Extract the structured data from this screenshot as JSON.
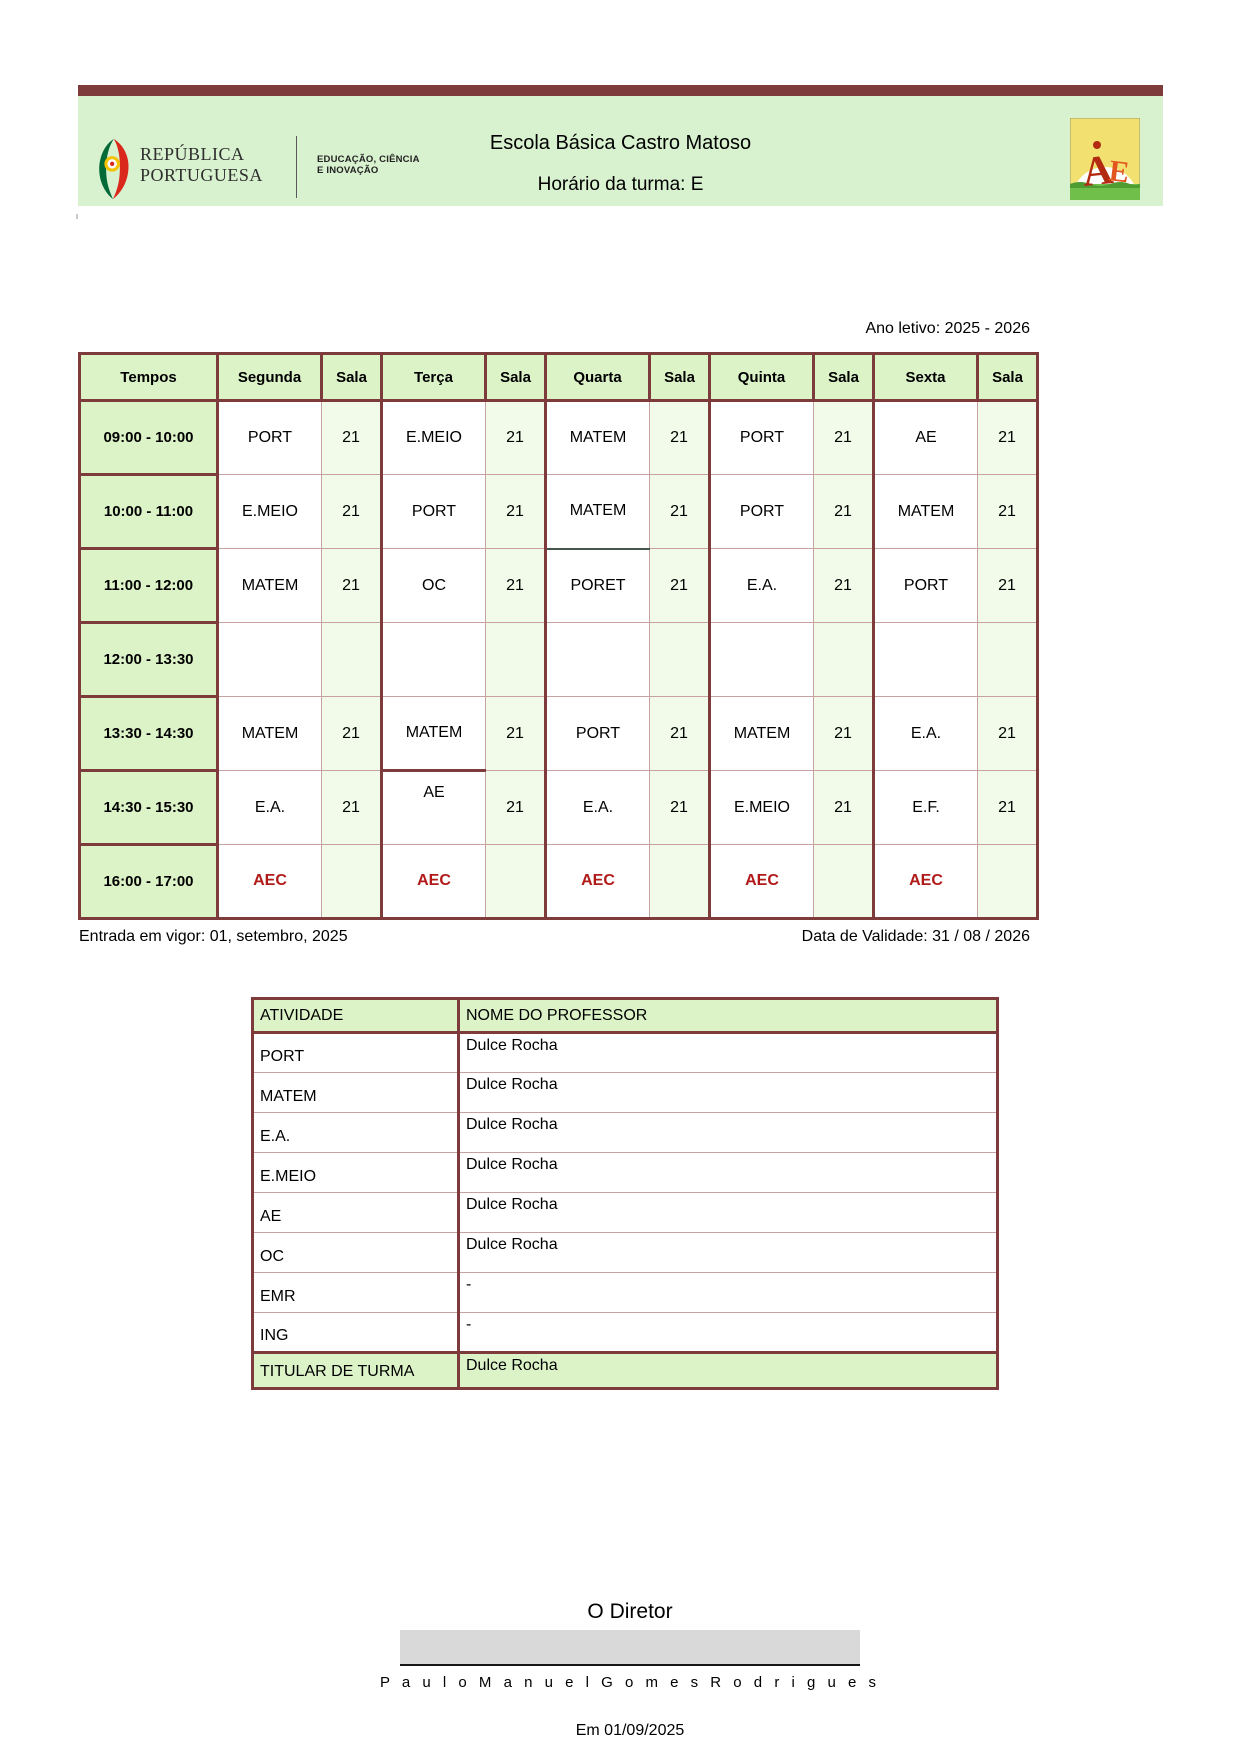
{
  "banner": {
    "republica_line1": "REPÚBLICA",
    "republica_line2": "PORTUGUESA",
    "ministry_line1": "EDUCAÇÃO, CIÊNCIA",
    "ministry_line2": "E INOVAÇÃO",
    "school_name": "Escola Básica Castro Matoso",
    "schedule_title": "Horário da turma: E"
  },
  "meta": {
    "year_label": "Ano letivo: 2025 - 2026",
    "valid_from": "Entrada em vigor: 01, setembro, 2025",
    "valid_until": "Data de Validade: 31 / 08 / 2026"
  },
  "timetable": {
    "headers": [
      "Tempos",
      "Segunda",
      "Sala",
      "Terça",
      "Sala",
      "Quarta",
      "Sala",
      "Quinta",
      "Sala",
      "Sexta",
      "Sala"
    ],
    "rows": [
      {
        "time": "09:00 - 10:00",
        "entries": [
          [
            "PORT",
            "21"
          ],
          [
            "E.MEIO",
            "21"
          ],
          [
            "MATEM",
            "21"
          ],
          [
            "PORT",
            "21"
          ],
          [
            "AE",
            "21"
          ]
        ]
      },
      {
        "time": "10:00 - 11:00",
        "entries": [
          [
            "E.MEIO",
            "21"
          ],
          [
            "PORT",
            "21"
          ],
          [
            "MATEM",
            "21"
          ],
          [
            "PORT",
            "21"
          ],
          [
            "MATEM",
            "21"
          ]
        ]
      },
      {
        "time": "11:00 - 12:00",
        "entries": [
          [
            "MATEM",
            "21"
          ],
          [
            "OC",
            "21"
          ],
          [
            "PORET",
            "21"
          ],
          [
            "E.A.",
            "21"
          ],
          [
            "PORT",
            "21"
          ]
        ]
      },
      {
        "time": "12:00 - 13:30",
        "entries": [
          [
            "",
            ""
          ],
          [
            "",
            ""
          ],
          [
            "",
            ""
          ],
          [
            "",
            ""
          ],
          [
            "",
            ""
          ]
        ]
      },
      {
        "time": "13:30 - 14:30",
        "entries": [
          [
            "MATEM",
            "21"
          ],
          [
            "MATEM",
            "21"
          ],
          [
            "PORT",
            "21"
          ],
          [
            "MATEM",
            "21"
          ],
          [
            "E.A.",
            "21"
          ]
        ]
      },
      {
        "time": "14:30 - 15:30",
        "entries": [
          [
            "E.A.",
            "21"
          ],
          [
            "AE",
            "21"
          ],
          [
            "E.A.",
            "21"
          ],
          [
            "E.MEIO",
            "21"
          ],
          [
            "E.F.",
            "21"
          ]
        ]
      },
      {
        "time": "16:00 - 17:00",
        "entries": [
          [
            "AEC",
            ""
          ],
          [
            "AEC",
            ""
          ],
          [
            "AEC",
            ""
          ],
          [
            "AEC",
            ""
          ],
          [
            "AEC",
            ""
          ]
        ]
      }
    ]
  },
  "teachers": {
    "headers": [
      "ATIVIDADE",
      "NOME DO PROFESSOR"
    ],
    "rows": [
      [
        "PORT",
        "Dulce Rocha"
      ],
      [
        "MATEM",
        "Dulce Rocha"
      ],
      [
        "E.A.",
        "Dulce Rocha"
      ],
      [
        "E.MEIO",
        "Dulce Rocha"
      ],
      [
        "AE",
        "Dulce Rocha"
      ],
      [
        "OC",
        "Dulce Rocha"
      ],
      [
        "EMR",
        "-"
      ],
      [
        "ING",
        "-"
      ]
    ],
    "footer": [
      "TITULAR DE TURMA",
      "Dulce Rocha"
    ]
  },
  "signature": {
    "role": "O Diretor",
    "name": "P a u l o   M a n u e l   G o m e s   R o d r i g u e s",
    "date": "Em 01/09/2025"
  },
  "colors": {
    "maroon_border": "#7d3b3b",
    "thin_border": "#c9a1a1",
    "header_green": "#dcf3c8",
    "sala_pale_green": "#f2fbe9",
    "banner_green": "#d8f1cf",
    "aec_red": "#b21a1a",
    "signature_gray": "#d9d9d9"
  }
}
